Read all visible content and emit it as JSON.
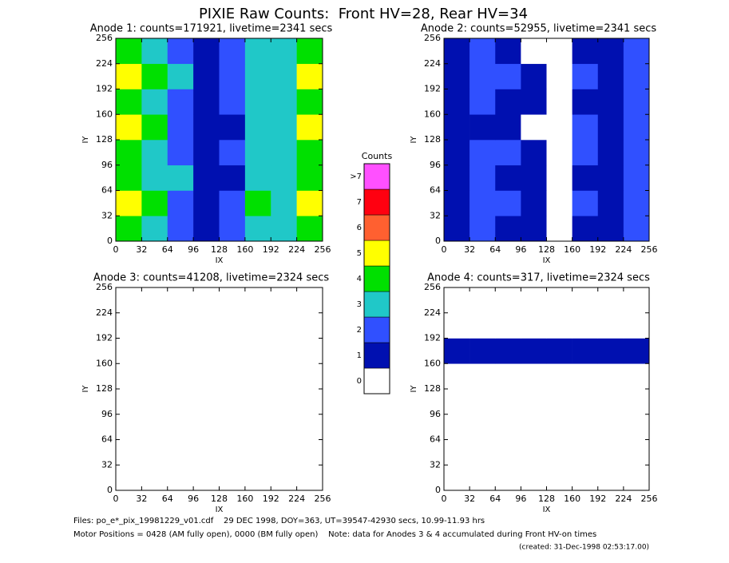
{
  "title": "PIXIE Raw Counts:  Front HV=28, Rear HV=34",
  "chart_data": [
    {
      "type": "heatmap",
      "title": "Anode 1: counts=171921, livetime=2341 secs",
      "xlabel": "IX",
      "ylabel": "IY",
      "xlim": [
        0,
        256
      ],
      "xticks": [
        0,
        32,
        64,
        96,
        128,
        160,
        192,
        224,
        256
      ],
      "ylim": [
        0,
        256
      ],
      "yticks": [
        0,
        32,
        64,
        96,
        128,
        160,
        192,
        224,
        256
      ],
      "z": [
        [
          4,
          3,
          2,
          1,
          2,
          3,
          3,
          4
        ],
        [
          5,
          4,
          2,
          1,
          2,
          4,
          3,
          5
        ],
        [
          4,
          3,
          3,
          1,
          1,
          3,
          3,
          4
        ],
        [
          4,
          3,
          2,
          1,
          2,
          3,
          3,
          4
        ],
        [
          5,
          4,
          2,
          1,
          1,
          3,
          3,
          5
        ],
        [
          4,
          3,
          2,
          1,
          2,
          3,
          3,
          4
        ],
        [
          5,
          4,
          3,
          1,
          2,
          3,
          3,
          5
        ],
        [
          4,
          3,
          2,
          1,
          2,
          3,
          3,
          4
        ]
      ]
    },
    {
      "type": "heatmap",
      "title": "Anode 2: counts=52955, livetime=2341 secs",
      "xlabel": "IX",
      "ylabel": "IY",
      "xlim": [
        0,
        256
      ],
      "xticks": [
        0,
        32,
        64,
        96,
        128,
        160,
        192,
        224,
        256
      ],
      "ylim": [
        0,
        256
      ],
      "yticks": [
        0,
        32,
        64,
        96,
        128,
        160,
        192,
        224,
        256
      ],
      "z": [
        [
          1,
          2,
          1,
          1,
          0,
          1,
          1,
          2
        ],
        [
          1,
          2,
          2,
          1,
          0,
          2,
          1,
          2
        ],
        [
          1,
          2,
          1,
          1,
          0,
          1,
          1,
          2
        ],
        [
          1,
          2,
          2,
          1,
          0,
          2,
          1,
          2
        ],
        [
          1,
          1,
          1,
          0,
          0,
          2,
          1,
          2
        ],
        [
          1,
          2,
          1,
          1,
          0,
          1,
          1,
          2
        ],
        [
          1,
          2,
          2,
          1,
          0,
          2,
          1,
          2
        ],
        [
          1,
          2,
          1,
          0,
          0,
          1,
          1,
          2
        ]
      ]
    },
    {
      "type": "heatmap",
      "title": "Anode 3: counts=41208, livetime=2324 secs",
      "xlabel": "IX",
      "ylabel": "IY",
      "xlim": [
        0,
        256
      ],
      "xticks": [
        0,
        32,
        64,
        96,
        128,
        160,
        192,
        224,
        256
      ],
      "ylim": [
        0,
        256
      ],
      "yticks": [
        0,
        32,
        64,
        96,
        128,
        160,
        192,
        224,
        256
      ],
      "z": [
        [
          0,
          0,
          0,
          0,
          0,
          0,
          0,
          0
        ],
        [
          0,
          0,
          0,
          0,
          0,
          0,
          0,
          0
        ],
        [
          0,
          0,
          0,
          0,
          0,
          0,
          0,
          0
        ],
        [
          0,
          0,
          0,
          0,
          0,
          0,
          0,
          0
        ],
        [
          0,
          0,
          0,
          0,
          0,
          0,
          0,
          0
        ],
        [
          0,
          0,
          0,
          0,
          0,
          0,
          0,
          0
        ],
        [
          0,
          0,
          0,
          0,
          0,
          0,
          0,
          0
        ],
        [
          0,
          0,
          0,
          0,
          0,
          0,
          0,
          0
        ]
      ]
    },
    {
      "type": "heatmap",
      "title": "Anode 4: counts=317, livetime=2324 secs",
      "xlabel": "IX",
      "ylabel": "IY",
      "xlim": [
        0,
        256
      ],
      "xticks": [
        0,
        32,
        64,
        96,
        128,
        160,
        192,
        224,
        256
      ],
      "ylim": [
        0,
        256
      ],
      "yticks": [
        0,
        32,
        64,
        96,
        128,
        160,
        192,
        224,
        256
      ],
      "z": [
        [
          0,
          0,
          0,
          0,
          0,
          0,
          0,
          0
        ],
        [
          0,
          0,
          0,
          0,
          0,
          0,
          0,
          0
        ],
        [
          0,
          0,
          0,
          0,
          0,
          0,
          0,
          0
        ],
        [
          0,
          0,
          0,
          0,
          0,
          0,
          0,
          0
        ],
        [
          0,
          0,
          0,
          0,
          0,
          0,
          0,
          0
        ],
        [
          1,
          1,
          1,
          1,
          1,
          1,
          1,
          1
        ],
        [
          0,
          0,
          0,
          0,
          0,
          0,
          0,
          0
        ],
        [
          0,
          0,
          0,
          0,
          0,
          0,
          0,
          0
        ]
      ]
    }
  ],
  "colorbar": {
    "title": "Counts",
    "levels": [
      0,
      1,
      2,
      3,
      4,
      5,
      6,
      7,
      {
        "value": 8,
        "label": ">7"
      }
    ],
    "colors": [
      "#ffffff",
      "#0010b0",
      "#3050ff",
      "#20c8c8",
      "#00e000",
      "#ffff00",
      "#ff6030",
      "#ff0010",
      "#ff50ff"
    ]
  },
  "footer": [
    "Files: po_e*_pix_19981229_v01.cdf    29 DEC 1998, DOY=363, UT=39547-42930 secs, 10.99-11.93 hrs",
    "Motor Positions = 0428 (AM fully open), 0000 (BM fully open)    Note: data for Anodes 3 & 4 accumulated during Front HV-on times",
    "(created: 31-Dec-1998 02:53:17.00)"
  ]
}
